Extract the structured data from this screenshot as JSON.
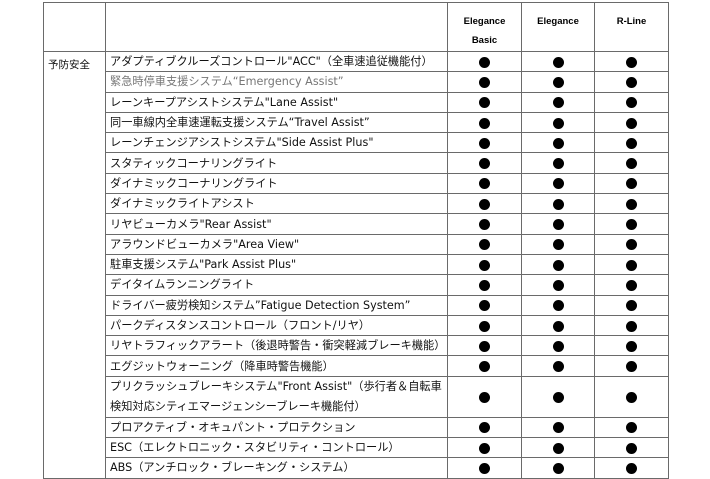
{
  "header": {
    "columns": [
      "Elegance Basic",
      "Elegance",
      "R-Line"
    ],
    "col1": "Elegance",
    "col1b": "Basic"
  },
  "category": "予防安全",
  "rows": [
    {
      "label": "アダプティブクルーズコントロール\"ACC\"（全車速追従機能付）",
      "marks": [
        "●",
        "●",
        "●"
      ]
    },
    {
      "label": "緊急時停車支援システム“Emergency Assist”",
      "marks": [
        "●",
        "●",
        "●"
      ]
    },
    {
      "label": "レーンキープアシストシステム\"Lane Assist\"",
      "marks": [
        "●",
        "●",
        "●"
      ]
    },
    {
      "label": "同一車線内全車速運転支援システム“Travel Assist”",
      "marks": [
        "●",
        "●",
        "●"
      ]
    },
    {
      "label": "レーンチェンジアシストシステム\"Side Assist Plus\"",
      "marks": [
        "●",
        "●",
        "●"
      ]
    },
    {
      "label": "スタティックコーナリングライト",
      "marks": [
        "●",
        "●",
        "●"
      ]
    },
    {
      "label": "ダイナミックコーナリングライト",
      "marks": [
        "●",
        "●",
        "●"
      ]
    },
    {
      "label": "ダイナミックライトアシスト",
      "marks": [
        "●",
        "●",
        "●"
      ]
    },
    {
      "label": "リヤビューカメラ\"Rear Assist\"",
      "marks": [
        "●",
        "●",
        "●"
      ]
    },
    {
      "label": "アラウンドビューカメラ\"Area View\"",
      "marks": [
        "●",
        "●",
        "●"
      ]
    },
    {
      "label": "駐車支援システム\"Park Assist Plus\"",
      "marks": [
        "●",
        "●",
        "●"
      ]
    },
    {
      "label": "デイタイムランニングライト",
      "marks": [
        "●",
        "●",
        "●"
      ]
    },
    {
      "label": "ドライバー疲労検知システム”Fatigue Detection System”",
      "marks": [
        "●",
        "●",
        "●"
      ]
    },
    {
      "label": "パークディスタンスコントロール（フロント/リヤ）",
      "marks": [
        "●",
        "●",
        "●"
      ]
    },
    {
      "label": "リヤトラフィックアラート（後退時警告・衝突軽減ブレーキ機能）",
      "marks": [
        "●",
        "●",
        "●"
      ]
    },
    {
      "label": "エグジットウォーニング（降車時警告機能）",
      "marks": [
        "●",
        "●",
        "●"
      ]
    },
    {
      "label": "プリクラッシュブレーキシステム\"Front Assist\"（歩行者＆自転車検知対応シティエマージェンシーブレーキ機能付）",
      "marks": [
        "●",
        "●",
        "●"
      ]
    },
    {
      "label": "プロアクティブ・オキュパント・プロテクション",
      "marks": [
        "●",
        "●",
        "●"
      ]
    },
    {
      "label": "ESC（エレクトロニック・スタビリティ・コントロール）",
      "marks": [
        "●",
        "●",
        "●"
      ]
    },
    {
      "label": "ABS（アンチロック・ブレーキング・システム）",
      "marks": [
        "●",
        "●",
        "●"
      ]
    }
  ]
}
